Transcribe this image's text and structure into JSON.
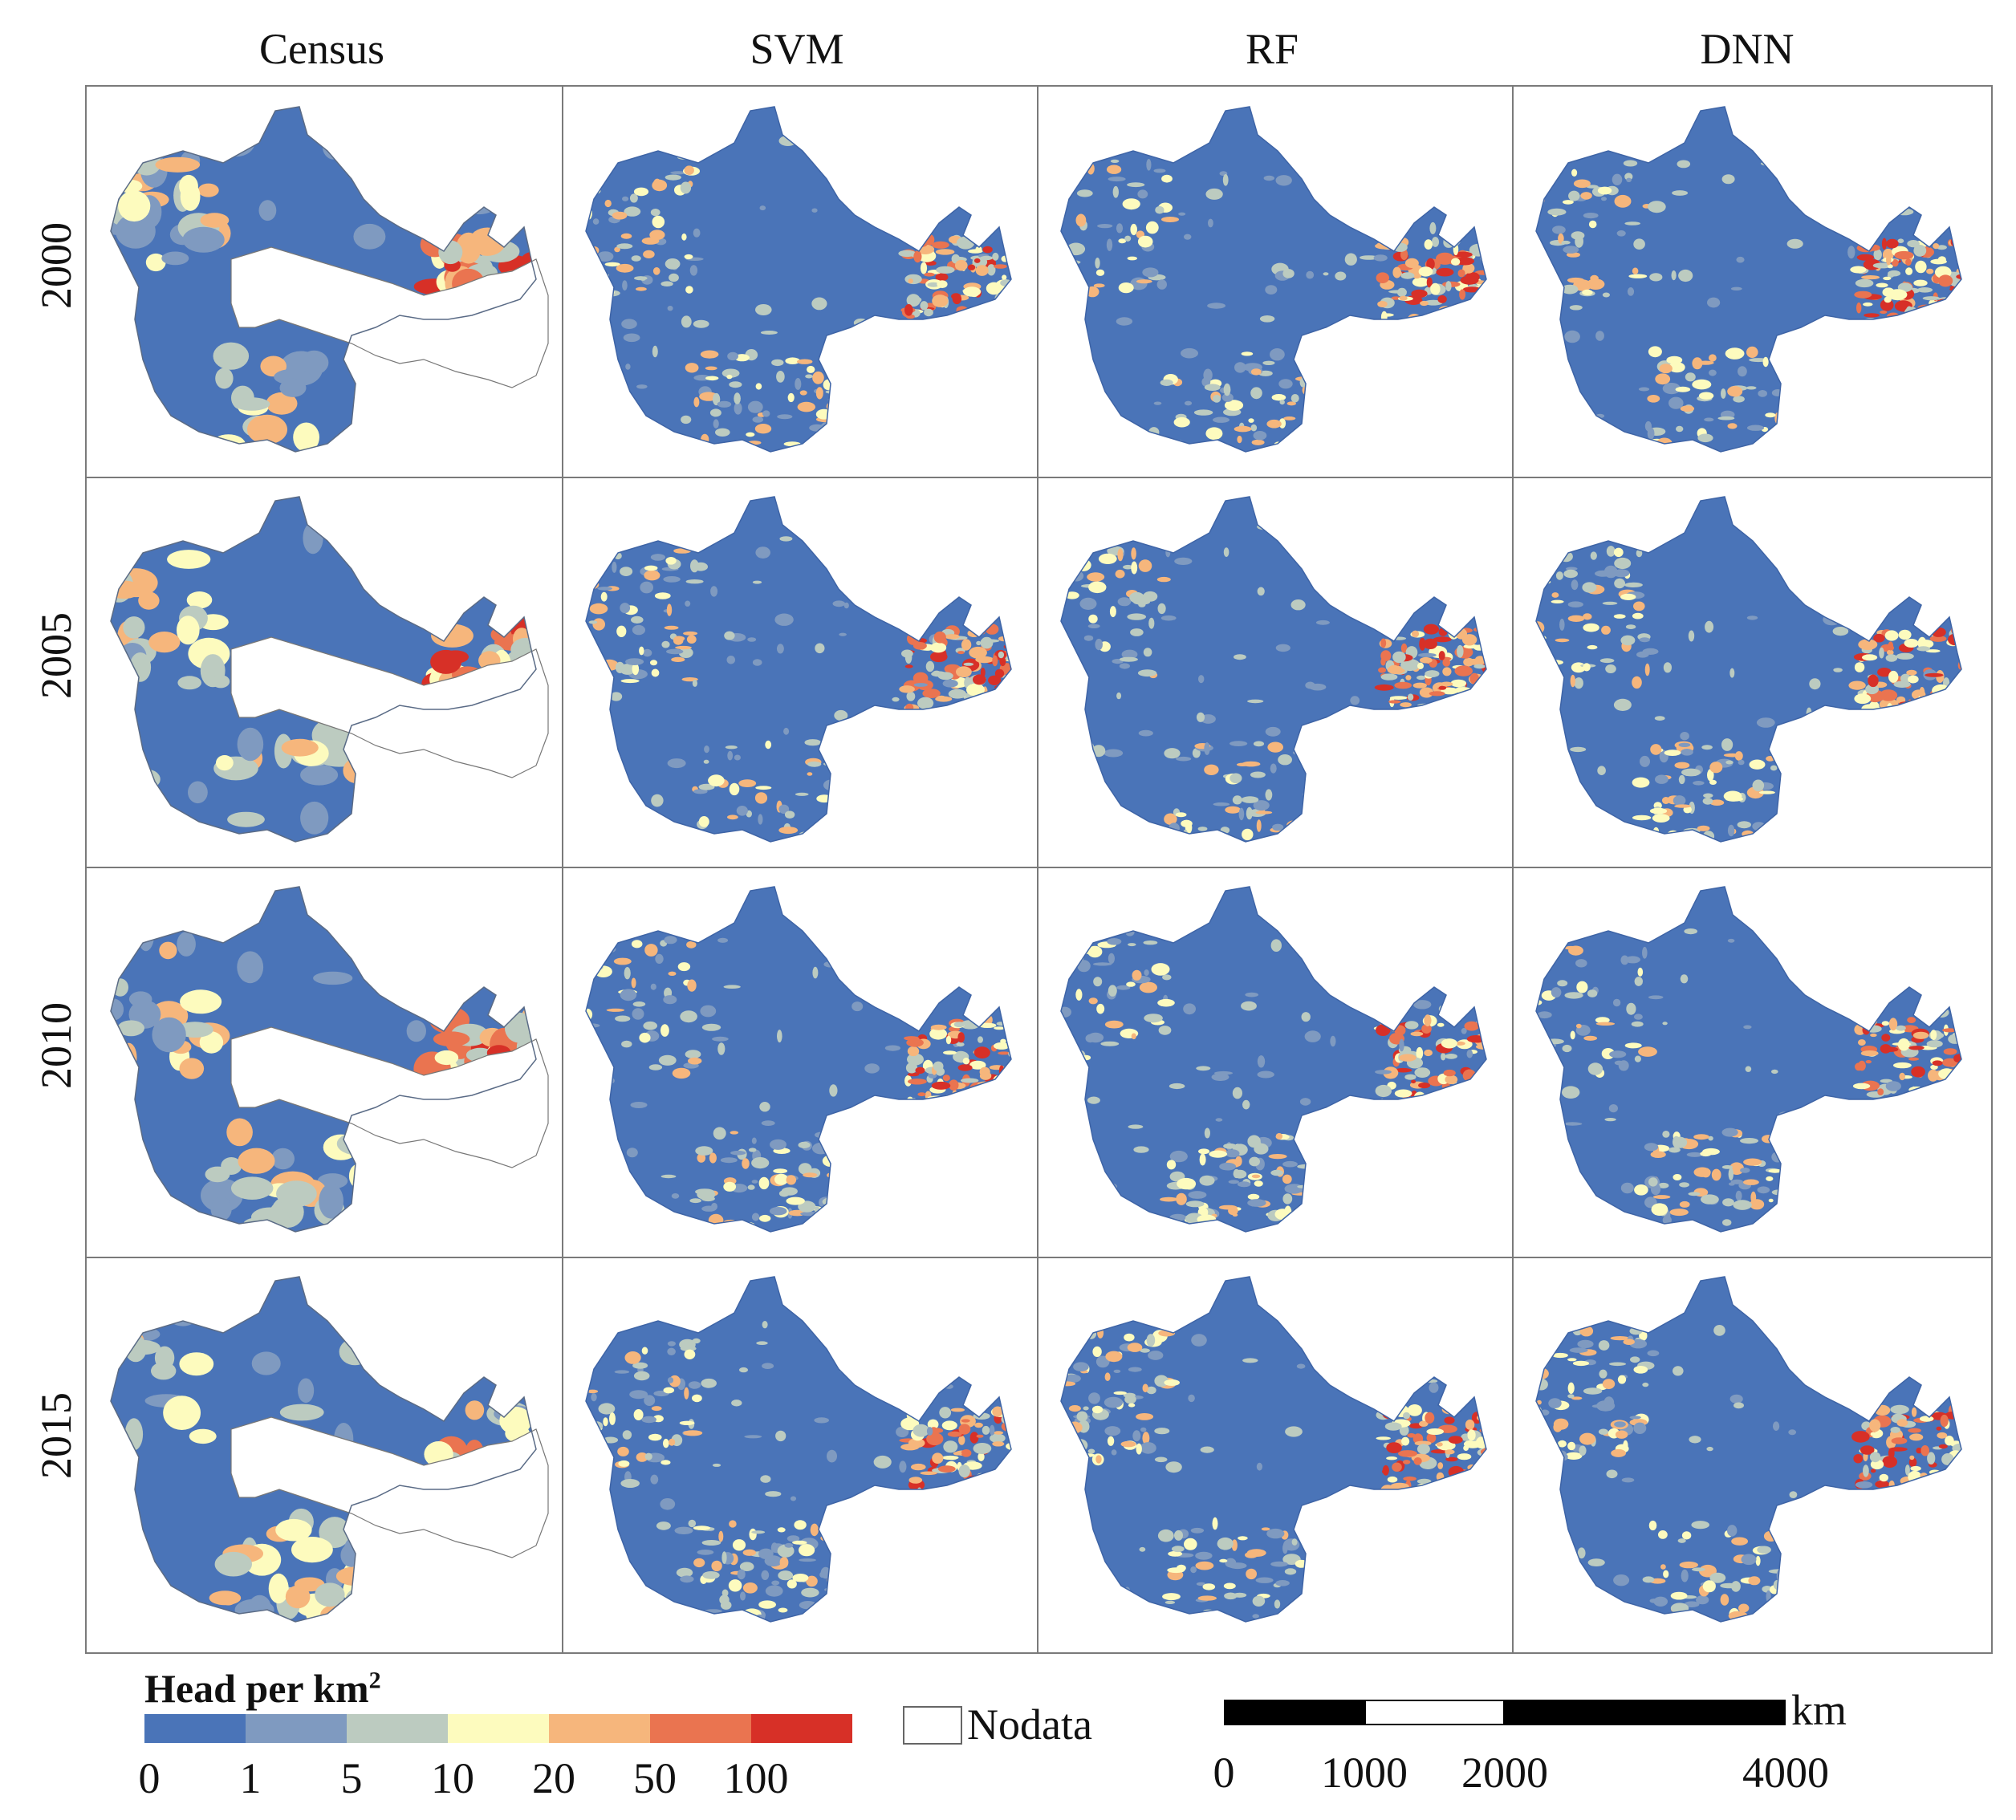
{
  "columns": [
    "Census",
    "SVM",
    "RF",
    "DNN"
  ],
  "rows": [
    "2000",
    "2005",
    "2010",
    "2015"
  ],
  "legend": {
    "title": "Head per km",
    "title_superscript": "2",
    "classes": [
      {
        "from": 0,
        "to": 1,
        "color": "#4a74b8"
      },
      {
        "from": 1,
        "to": 5,
        "color": "#7f9ac0"
      },
      {
        "from": 5,
        "to": 10,
        "color": "#bccbc0"
      },
      {
        "from": 10,
        "to": 20,
        "color": "#fdfbbe"
      },
      {
        "from": 20,
        "to": 50,
        "color": "#f6b67c"
      },
      {
        "from": 50,
        "to": 100,
        "color": "#ea7450"
      },
      {
        "from": 100,
        "to": null,
        "color": "#d73027"
      }
    ],
    "tick_labels": [
      "0",
      "1",
      "5",
      "10",
      "20",
      "50",
      "100"
    ],
    "nodata_label": "Nodata"
  },
  "scalebar": {
    "unit": "km",
    "tick_labels": [
      "0",
      "1000",
      "2000",
      "4000"
    ],
    "segments_km": [
      1000,
      1000,
      2000
    ]
  },
  "colors": {
    "low": "#4a74b8",
    "grid_line": "#7a7a7a",
    "outline": "#666666"
  }
}
